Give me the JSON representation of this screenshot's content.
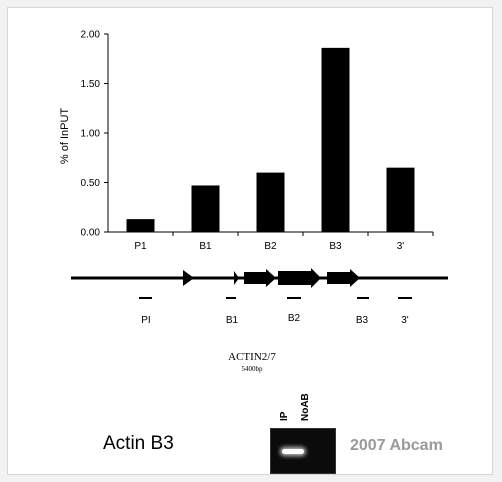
{
  "chart_data": {
    "type": "bar",
    "ylabel": "% of InPUT",
    "categories": [
      "P1",
      "B1",
      "B2",
      "B3",
      "3'"
    ],
    "values": [
      0.13,
      0.47,
      0.6,
      1.86,
      0.65
    ],
    "ylim": [
      0,
      2
    ],
    "yticks": [
      "0.00",
      "0.50",
      "1.00",
      "1.50",
      "2.00"
    ],
    "grid": false,
    "bar_color": "#000000"
  },
  "gene_map": {
    "gene_name": "ACTIN2/7",
    "gene_length": "5400bp",
    "amplicon_labels": [
      "PI",
      "B1",
      "B2",
      "B3",
      "3'"
    ]
  },
  "gel": {
    "title": "Actin B3",
    "lanes": [
      "IP",
      "NoAB"
    ]
  },
  "watermark": "2007 Abcam"
}
